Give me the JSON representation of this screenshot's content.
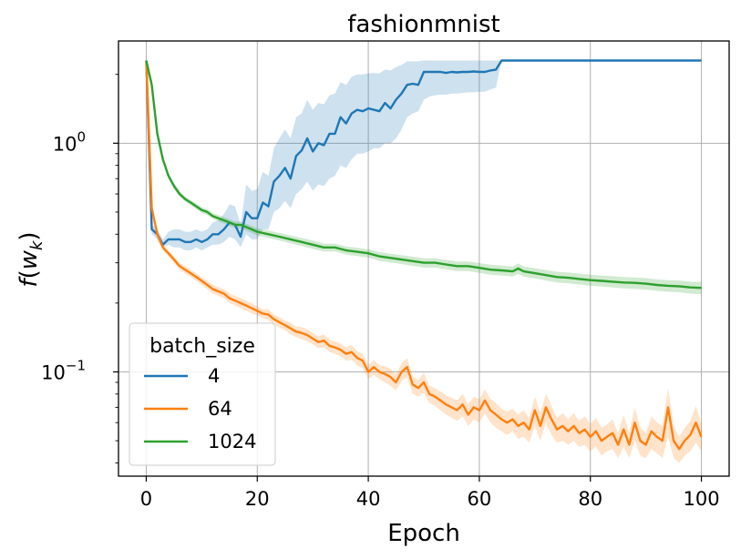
{
  "chart_data": {
    "type": "line",
    "title": "fashionmnist",
    "xlabel": "Epoch",
    "ylabel": "f(w_k)",
    "yscale": "log",
    "xlim": [
      -5,
      105
    ],
    "ylim": [
      0.035,
      2.8
    ],
    "x_ticks": [
      "0",
      "20",
      "40",
      "60",
      "80",
      "100"
    ],
    "y_ticks": [
      {
        "base": "10",
        "exp": "0"
      },
      {
        "base": "10",
        "exp": "−1"
      }
    ],
    "grid": true,
    "legend": {
      "title": "batch_size",
      "position": "lower-left"
    },
    "series": [
      {
        "name": "4",
        "color": "#1f77b4",
        "x": [
          0,
          1,
          2,
          3,
          4,
          5,
          6,
          7,
          8,
          9,
          10,
          11,
          12,
          13,
          14,
          15,
          16,
          17,
          18,
          19,
          20,
          21,
          22,
          23,
          24,
          25,
          26,
          27,
          28,
          29,
          30,
          31,
          32,
          33,
          34,
          35,
          36,
          37,
          38,
          39,
          40,
          41,
          42,
          43,
          44,
          45,
          46,
          47,
          48,
          49,
          50,
          51,
          52,
          53,
          54,
          55,
          56,
          57,
          58,
          59,
          60,
          61,
          62,
          63,
          64,
          65,
          70,
          75,
          80,
          85,
          90,
          95,
          100
        ],
        "y": [
          2.3,
          0.42,
          0.4,
          0.36,
          0.38,
          0.38,
          0.38,
          0.37,
          0.37,
          0.38,
          0.37,
          0.38,
          0.4,
          0.4,
          0.42,
          0.45,
          0.44,
          0.39,
          0.5,
          0.47,
          0.47,
          0.55,
          0.53,
          0.68,
          0.72,
          0.78,
          0.7,
          0.88,
          0.93,
          1.05,
          0.92,
          1.0,
          0.98,
          1.1,
          1.1,
          1.3,
          1.22,
          1.35,
          1.4,
          1.38,
          1.42,
          1.4,
          1.38,
          1.5,
          1.42,
          1.55,
          1.65,
          1.8,
          1.82,
          1.8,
          2.05,
          2.05,
          2.05,
          2.05,
          2.03,
          2.05,
          2.04,
          2.05,
          2.05,
          2.06,
          2.05,
          2.05,
          2.08,
          2.1,
          2.3,
          2.3,
          2.3,
          2.3,
          2.3,
          2.3,
          2.3,
          2.3,
          2.3
        ],
        "lower": [
          2.3,
          0.4,
          0.38,
          0.35,
          0.36,
          0.35,
          0.35,
          0.34,
          0.34,
          0.35,
          0.34,
          0.35,
          0.36,
          0.36,
          0.37,
          0.39,
          0.38,
          0.35,
          0.4,
          0.38,
          0.38,
          0.42,
          0.42,
          0.5,
          0.52,
          0.56,
          0.52,
          0.6,
          0.63,
          0.68,
          0.62,
          0.66,
          0.65,
          0.7,
          0.72,
          0.8,
          0.78,
          0.85,
          0.9,
          0.9,
          0.92,
          0.95,
          0.95,
          1.0,
          1.0,
          1.05,
          1.15,
          1.3,
          1.35,
          1.38,
          1.55,
          1.6,
          1.62,
          1.63,
          1.63,
          1.65,
          1.65,
          1.66,
          1.67,
          1.67,
          1.68,
          1.68,
          1.72,
          1.75,
          2.3,
          2.3,
          2.3,
          2.3,
          2.3,
          2.3,
          2.3,
          2.3,
          2.3
        ],
        "upper": [
          2.3,
          0.44,
          0.42,
          0.38,
          0.41,
          0.42,
          0.42,
          0.41,
          0.41,
          0.42,
          0.41,
          0.42,
          0.45,
          0.46,
          0.49,
          0.54,
          0.53,
          0.44,
          0.66,
          0.62,
          0.63,
          0.75,
          0.72,
          0.95,
          1.05,
          1.15,
          1.05,
          1.3,
          1.35,
          1.55,
          1.4,
          1.5,
          1.48,
          1.62,
          1.65,
          1.85,
          1.8,
          1.95,
          2.0,
          2.0,
          2.02,
          2.03,
          2.02,
          2.1,
          2.08,
          2.15,
          2.2,
          2.28,
          2.28,
          2.28,
          2.3,
          2.3,
          2.3,
          2.3,
          2.3,
          2.3,
          2.3,
          2.3,
          2.3,
          2.3,
          2.3,
          2.3,
          2.3,
          2.3,
          2.3,
          2.3,
          2.3,
          2.3,
          2.3,
          2.3,
          2.3,
          2.3,
          2.3
        ]
      },
      {
        "name": "64",
        "color": "#ff7f0e",
        "x": [
          0,
          1,
          2,
          3,
          4,
          5,
          6,
          7,
          8,
          9,
          10,
          11,
          12,
          13,
          14,
          15,
          16,
          17,
          18,
          19,
          20,
          21,
          22,
          23,
          24,
          25,
          26,
          27,
          28,
          29,
          30,
          31,
          32,
          33,
          34,
          35,
          36,
          37,
          38,
          39,
          40,
          41,
          42,
          43,
          44,
          45,
          46,
          47,
          48,
          49,
          50,
          51,
          52,
          53,
          54,
          55,
          56,
          57,
          58,
          59,
          60,
          61,
          62,
          63,
          64,
          65,
          66,
          67,
          68,
          69,
          70,
          71,
          72,
          73,
          74,
          75,
          76,
          77,
          78,
          79,
          80,
          81,
          82,
          83,
          84,
          85,
          86,
          87,
          88,
          89,
          90,
          91,
          92,
          93,
          94,
          95,
          96,
          97,
          98,
          99,
          100
        ],
        "y": [
          2.3,
          0.52,
          0.4,
          0.35,
          0.33,
          0.31,
          0.29,
          0.28,
          0.27,
          0.26,
          0.25,
          0.24,
          0.23,
          0.225,
          0.22,
          0.21,
          0.205,
          0.2,
          0.195,
          0.19,
          0.185,
          0.18,
          0.178,
          0.17,
          0.165,
          0.16,
          0.155,
          0.15,
          0.148,
          0.145,
          0.14,
          0.135,
          0.137,
          0.13,
          0.128,
          0.125,
          0.12,
          0.122,
          0.115,
          0.112,
          0.1,
          0.105,
          0.1,
          0.098,
          0.095,
          0.09,
          0.1,
          0.105,
          0.088,
          0.085,
          0.09,
          0.08,
          0.078,
          0.075,
          0.072,
          0.07,
          0.068,
          0.072,
          0.065,
          0.07,
          0.068,
          0.075,
          0.068,
          0.065,
          0.062,
          0.06,
          0.062,
          0.058,
          0.06,
          0.056,
          0.068,
          0.058,
          0.07,
          0.062,
          0.056,
          0.058,
          0.055,
          0.058,
          0.054,
          0.056,
          0.052,
          0.055,
          0.05,
          0.052,
          0.054,
          0.048,
          0.056,
          0.048,
          0.06,
          0.05,
          0.048,
          0.055,
          0.052,
          0.05,
          0.07,
          0.05,
          0.046,
          0.05,
          0.053,
          0.06,
          0.052
        ],
        "lower": [
          2.3,
          0.5,
          0.38,
          0.34,
          0.32,
          0.3,
          0.28,
          0.27,
          0.26,
          0.25,
          0.24,
          0.23,
          0.22,
          0.215,
          0.21,
          0.2,
          0.195,
          0.19,
          0.185,
          0.18,
          0.176,
          0.172,
          0.168,
          0.162,
          0.156,
          0.152,
          0.146,
          0.142,
          0.139,
          0.136,
          0.132,
          0.127,
          0.128,
          0.122,
          0.12,
          0.117,
          0.112,
          0.113,
          0.107,
          0.104,
          0.093,
          0.097,
          0.093,
          0.09,
          0.087,
          0.083,
          0.091,
          0.095,
          0.08,
          0.078,
          0.081,
          0.073,
          0.071,
          0.068,
          0.065,
          0.063,
          0.061,
          0.064,
          0.058,
          0.062,
          0.06,
          0.066,
          0.06,
          0.057,
          0.055,
          0.053,
          0.055,
          0.051,
          0.052,
          0.049,
          0.058,
          0.05,
          0.06,
          0.053,
          0.049,
          0.05,
          0.048,
          0.05,
          0.047,
          0.048,
          0.045,
          0.047,
          0.043,
          0.045,
          0.046,
          0.042,
          0.047,
          0.042,
          0.05,
          0.043,
          0.042,
          0.046,
          0.044,
          0.042,
          0.052,
          0.042,
          0.04,
          0.043,
          0.045,
          0.049,
          0.045
        ],
        "upper": [
          2.3,
          0.54,
          0.42,
          0.36,
          0.34,
          0.32,
          0.3,
          0.29,
          0.28,
          0.27,
          0.26,
          0.25,
          0.24,
          0.235,
          0.23,
          0.22,
          0.215,
          0.21,
          0.205,
          0.2,
          0.194,
          0.188,
          0.188,
          0.178,
          0.174,
          0.168,
          0.164,
          0.158,
          0.157,
          0.154,
          0.148,
          0.143,
          0.146,
          0.138,
          0.136,
          0.133,
          0.128,
          0.131,
          0.123,
          0.12,
          0.107,
          0.113,
          0.107,
          0.106,
          0.103,
          0.097,
          0.109,
          0.115,
          0.096,
          0.092,
          0.099,
          0.087,
          0.085,
          0.082,
          0.079,
          0.077,
          0.075,
          0.08,
          0.072,
          0.078,
          0.076,
          0.084,
          0.076,
          0.073,
          0.069,
          0.067,
          0.069,
          0.065,
          0.068,
          0.063,
          0.078,
          0.066,
          0.08,
          0.071,
          0.063,
          0.066,
          0.062,
          0.066,
          0.061,
          0.064,
          0.059,
          0.063,
          0.057,
          0.059,
          0.062,
          0.054,
          0.065,
          0.054,
          0.07,
          0.057,
          0.054,
          0.064,
          0.06,
          0.058,
          0.085,
          0.058,
          0.052,
          0.057,
          0.061,
          0.071,
          0.059
        ]
      },
      {
        "name": "1024",
        "color": "#2ca02c",
        "x": [
          0,
          1,
          2,
          3,
          4,
          5,
          6,
          7,
          8,
          9,
          10,
          11,
          12,
          13,
          14,
          15,
          16,
          17,
          18,
          19,
          20,
          22,
          24,
          26,
          28,
          30,
          32,
          34,
          36,
          38,
          40,
          42,
          44,
          46,
          48,
          50,
          52,
          54,
          56,
          58,
          60,
          62,
          64,
          66,
          67,
          68,
          70,
          72,
          74,
          76,
          78,
          80,
          82,
          84,
          86,
          88,
          90,
          92,
          94,
          96,
          98,
          100
        ],
        "y": [
          2.3,
          1.8,
          1.1,
          0.85,
          0.72,
          0.65,
          0.6,
          0.57,
          0.55,
          0.53,
          0.51,
          0.5,
          0.48,
          0.47,
          0.46,
          0.45,
          0.44,
          0.44,
          0.43,
          0.42,
          0.41,
          0.4,
          0.39,
          0.38,
          0.37,
          0.36,
          0.35,
          0.35,
          0.34,
          0.335,
          0.33,
          0.32,
          0.315,
          0.31,
          0.305,
          0.3,
          0.3,
          0.295,
          0.29,
          0.29,
          0.285,
          0.28,
          0.278,
          0.275,
          0.283,
          0.275,
          0.27,
          0.265,
          0.26,
          0.258,
          0.255,
          0.252,
          0.25,
          0.248,
          0.246,
          0.245,
          0.243,
          0.24,
          0.238,
          0.237,
          0.234,
          0.233
        ],
        "lower": [
          2.3,
          1.75,
          1.07,
          0.83,
          0.7,
          0.63,
          0.585,
          0.555,
          0.535,
          0.515,
          0.495,
          0.485,
          0.465,
          0.455,
          0.445,
          0.435,
          0.425,
          0.425,
          0.415,
          0.405,
          0.395,
          0.385,
          0.375,
          0.365,
          0.355,
          0.345,
          0.336,
          0.336,
          0.326,
          0.321,
          0.316,
          0.306,
          0.301,
          0.296,
          0.291,
          0.286,
          0.286,
          0.281,
          0.276,
          0.276,
          0.271,
          0.266,
          0.264,
          0.261,
          0.268,
          0.261,
          0.256,
          0.251,
          0.246,
          0.244,
          0.241,
          0.238,
          0.236,
          0.234,
          0.232,
          0.231,
          0.229,
          0.226,
          0.224,
          0.223,
          0.22,
          0.219
        ],
        "upper": [
          2.3,
          1.85,
          1.13,
          0.87,
          0.74,
          0.67,
          0.615,
          0.585,
          0.565,
          0.545,
          0.525,
          0.515,
          0.495,
          0.485,
          0.475,
          0.465,
          0.455,
          0.455,
          0.445,
          0.435,
          0.425,
          0.415,
          0.405,
          0.395,
          0.385,
          0.375,
          0.364,
          0.364,
          0.354,
          0.349,
          0.344,
          0.334,
          0.329,
          0.324,
          0.319,
          0.314,
          0.314,
          0.309,
          0.304,
          0.304,
          0.299,
          0.294,
          0.292,
          0.289,
          0.298,
          0.289,
          0.284,
          0.279,
          0.274,
          0.272,
          0.269,
          0.266,
          0.264,
          0.262,
          0.26,
          0.259,
          0.257,
          0.254,
          0.252,
          0.251,
          0.248,
          0.247
        ]
      }
    ]
  }
}
